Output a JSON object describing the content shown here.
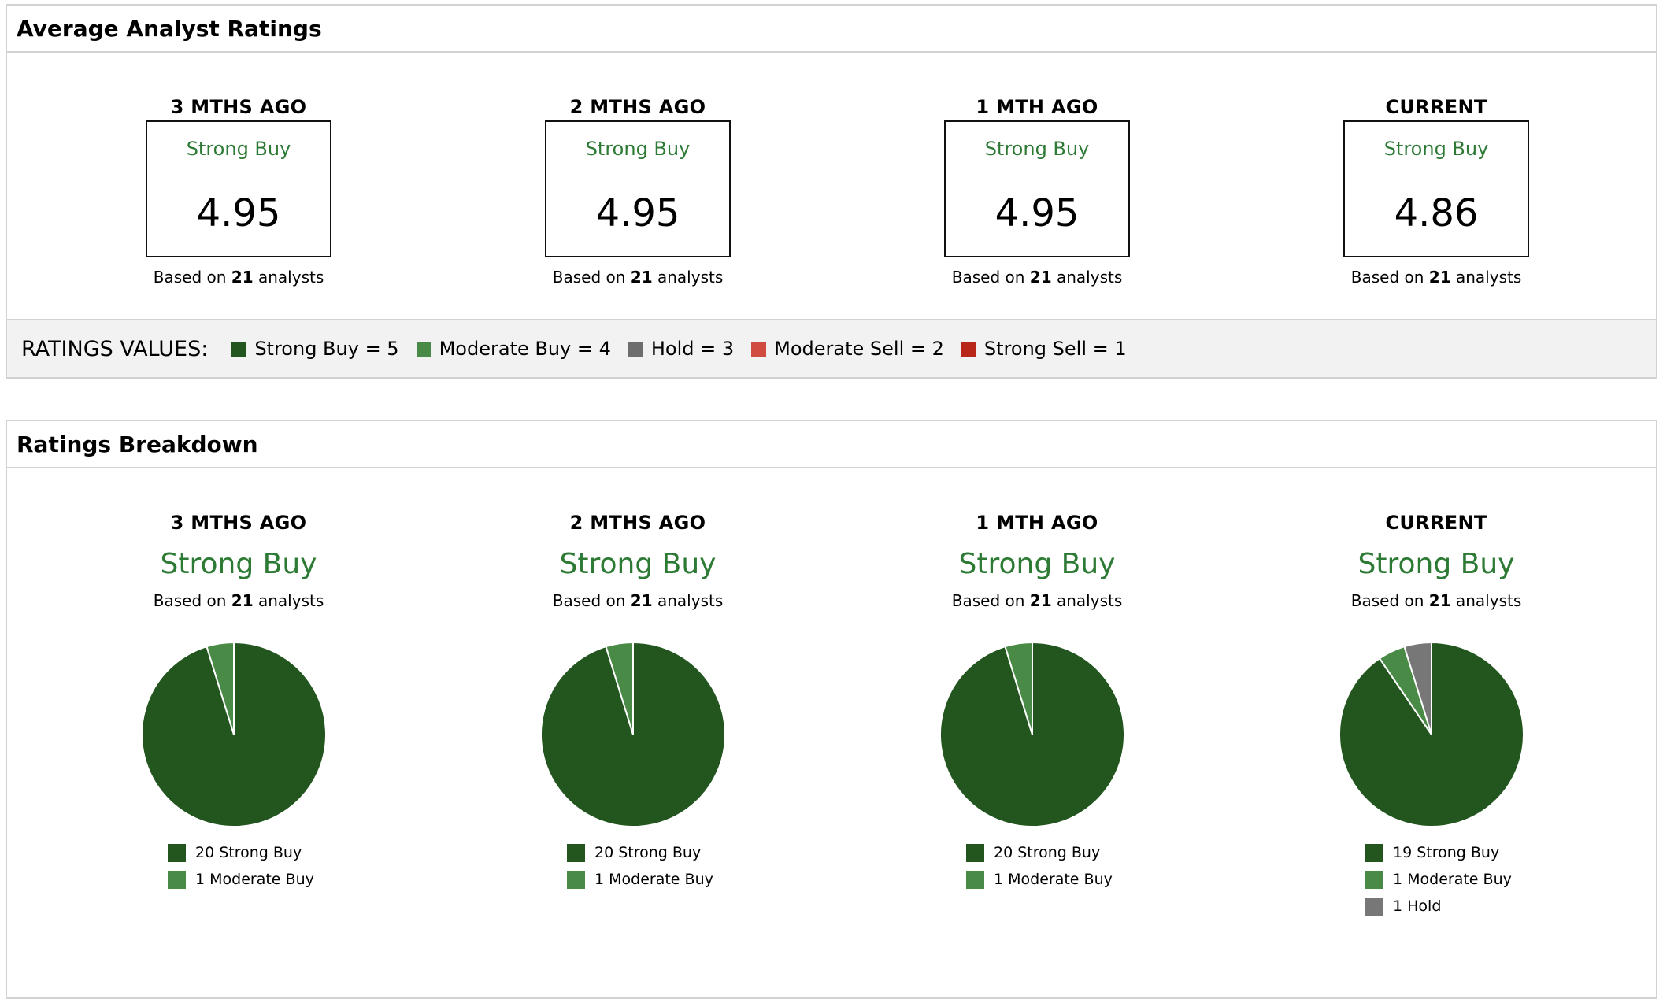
{
  "colors": {
    "strong_buy": "#22561e",
    "moderate_buy": "#4a8a47",
    "hold": "#6d6d6d",
    "moderate_sell": "#d04c40",
    "strong_sell": "#b8261a",
    "label_green": "#2d7a35"
  },
  "avg": {
    "title": "Average Analyst Ratings",
    "periods": [
      {
        "title": "3 MTHS AGO",
        "label": "Strong Buy",
        "value": "4.95",
        "based_pre": "Based on",
        "count": "21",
        "based_post": "analysts"
      },
      {
        "title": "2 MTHS AGO",
        "label": "Strong Buy",
        "value": "4.95",
        "based_pre": "Based on",
        "count": "21",
        "based_post": "analysts"
      },
      {
        "title": "1 MTH AGO",
        "label": "Strong Buy",
        "value": "4.95",
        "based_pre": "Based on",
        "count": "21",
        "based_post": "analysts"
      },
      {
        "title": "CURRENT",
        "label": "Strong Buy",
        "value": "4.86",
        "based_pre": "Based on",
        "count": "21",
        "based_post": "analysts"
      }
    ],
    "legend_title": "RATINGS VALUES:",
    "legend": [
      {
        "label": "Strong Buy = 5",
        "color": "#22561e"
      },
      {
        "label": "Moderate Buy = 4",
        "color": "#4a8a47"
      },
      {
        "label": "Hold = 3",
        "color": "#6d6d6d"
      },
      {
        "label": "Moderate Sell = 2",
        "color": "#d04c40"
      },
      {
        "label": "Strong Sell = 1",
        "color": "#b8261a"
      }
    ]
  },
  "breakdown": {
    "title": "Ratings Breakdown",
    "periods": [
      {
        "title": "3 MTHS AGO",
        "label": "Strong Buy",
        "based_pre": "Based on",
        "count": "21",
        "based_post": "analysts",
        "legend": [
          {
            "text": "20 Strong Buy",
            "color": "#22561e"
          },
          {
            "text": "1 Moderate Buy",
            "color": "#4a8a47"
          }
        ]
      },
      {
        "title": "2 MTHS AGO",
        "label": "Strong Buy",
        "based_pre": "Based on",
        "count": "21",
        "based_post": "analysts",
        "legend": [
          {
            "text": "20 Strong Buy",
            "color": "#22561e"
          },
          {
            "text": "1 Moderate Buy",
            "color": "#4a8a47"
          }
        ]
      },
      {
        "title": "1 MTH AGO",
        "label": "Strong Buy",
        "based_pre": "Based on",
        "count": "21",
        "based_post": "analysts",
        "legend": [
          {
            "text": "20 Strong Buy",
            "color": "#22561e"
          },
          {
            "text": "1 Moderate Buy",
            "color": "#4a8a47"
          }
        ]
      },
      {
        "title": "CURRENT",
        "label": "Strong Buy",
        "based_pre": "Based on",
        "count": "21",
        "based_post": "analysts",
        "legend": [
          {
            "text": "19 Strong Buy",
            "color": "#22561e"
          },
          {
            "text": "1 Moderate Buy",
            "color": "#4a8a47"
          },
          {
            "text": "1 Hold",
            "color": "#777777"
          }
        ]
      }
    ]
  },
  "chart_data": [
    {
      "type": "pie",
      "categories": [
        "Strong Buy",
        "Moderate Buy"
      ],
      "values": [
        20,
        1
      ],
      "colors": [
        "#22561e",
        "#4a8a47"
      ]
    },
    {
      "type": "pie",
      "categories": [
        "Strong Buy",
        "Moderate Buy"
      ],
      "values": [
        20,
        1
      ],
      "colors": [
        "#22561e",
        "#4a8a47"
      ]
    },
    {
      "type": "pie",
      "categories": [
        "Strong Buy",
        "Moderate Buy"
      ],
      "values": [
        20,
        1
      ],
      "colors": [
        "#22561e",
        "#4a8a47"
      ]
    },
    {
      "type": "pie",
      "categories": [
        "Strong Buy",
        "Moderate Buy",
        "Hold"
      ],
      "values": [
        19,
        1,
        1
      ],
      "colors": [
        "#22561e",
        "#4a8a47",
        "#777777"
      ]
    }
  ]
}
